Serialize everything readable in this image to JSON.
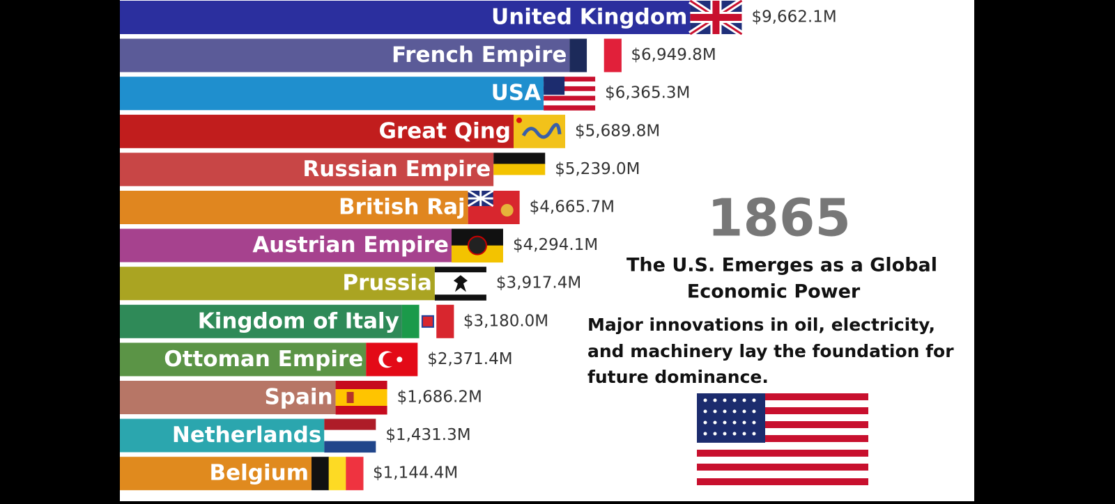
{
  "chart_data": {
    "type": "bar",
    "categories": [
      "United Kingdom",
      "French Empire",
      "USA",
      "Great Qing",
      "Russian Empire",
      "British Raj",
      "Austrian Empire",
      "Prussia",
      "Kingdom of Italy",
      "Ottoman Empire",
      "Spain",
      "Netherlands",
      "Belgium"
    ],
    "values": [
      9662.1,
      6949.8,
      6365.3,
      5689.8,
      5239.0,
      4665.7,
      4294.1,
      3917.4,
      3180.0,
      2371.4,
      1686.2,
      1431.3,
      1144.4
    ],
    "value_labels": [
      "$9,662.1M",
      "$6,949.8M",
      "$6,365.3M",
      "$5,689.8M",
      "$5,239.0M",
      "$4,665.7M",
      "$4,294.1M",
      "$3,917.4M",
      "$3,180.0M",
      "$2,371.4M",
      "$1,686.2M",
      "$1,431.3M",
      "$1,144.4M"
    ],
    "colors": [
      "#2b2f9e",
      "#5b5b98",
      "#1f8fce",
      "#c11d1d",
      "#c84646",
      "#e0861f",
      "#a6428e",
      "#aaa422",
      "#2f8a58",
      "#5b9446",
      "#b77666",
      "#2ba6ae",
      "#e08a1e"
    ],
    "year": 1865,
    "annotation_title": [
      "The U.S. Emerges as a Global",
      "Economic Power"
    ],
    "annotation_text": [
      "Major innovations in oil, electricity,",
      "and machinery lay the foundation for",
      "future dominance."
    ]
  }
}
